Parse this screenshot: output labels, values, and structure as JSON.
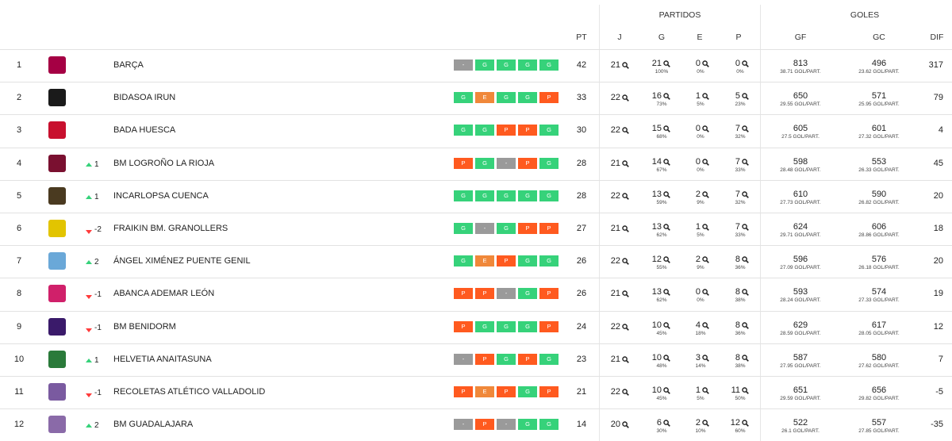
{
  "header": {
    "groups": [
      "PARTIDOS",
      "GOLES"
    ],
    "columns": [
      "PT",
      "J",
      "G",
      "E",
      "P",
      "GF",
      "GC",
      "DIF"
    ]
  },
  "table": {
    "rows": [
      {
        "position": 1,
        "team": "BARÇA",
        "form": [
          "-",
          "G",
          "G",
          "G",
          "G"
        ],
        "pt": 42,
        "j": 21,
        "g": 21,
        "g_pct": "100%",
        "e": 0,
        "e_pct": "0%",
        "p": 0,
        "p_pct": "0%",
        "gf": 813,
        "gf_avg": "38.71 GOL/PART.",
        "gc": 496,
        "gc_avg": "23.62 GOL/PART.",
        "dif": 317
      },
      {
        "position": 2,
        "team": "BIDASOA IRUN",
        "form": [
          "G",
          "E",
          "G",
          "G",
          "P"
        ],
        "pt": 33,
        "j": 22,
        "g": 16,
        "g_pct": "73%",
        "e": 1,
        "e_pct": "5%",
        "p": 5,
        "p_pct": "23%",
        "gf": 650,
        "gf_avg": "29.55 GOL/PART.",
        "gc": 571,
        "gc_avg": "25.95 GOL/PART.",
        "dif": 79
      },
      {
        "position": 3,
        "team": "BADA HUESCA",
        "form": [
          "G",
          "G",
          "P",
          "P",
          "G"
        ],
        "pt": 30,
        "j": 22,
        "g": 15,
        "g_pct": "68%",
        "e": 0,
        "e_pct": "0%",
        "p": 7,
        "p_pct": "32%",
        "gf": 605,
        "gf_avg": "27.5 GOL/PART.",
        "gc": 601,
        "gc_avg": "27.32 GOL/PART.",
        "dif": 4
      },
      {
        "position": 4,
        "team": "BM LOGROÑO LA RIOJA",
        "change": 1,
        "form": [
          "P",
          "G",
          "-",
          "P",
          "G"
        ],
        "pt": 28,
        "j": 21,
        "g": 14,
        "g_pct": "67%",
        "e": 0,
        "e_pct": "0%",
        "p": 7,
        "p_pct": "33%",
        "gf": 598,
        "gf_avg": "28.48 GOL/PART.",
        "gc": 553,
        "gc_avg": "26.33 GOL/PART.",
        "dif": 45
      },
      {
        "position": 5,
        "team": "INCARLOPSA CUENCA",
        "change": 1,
        "form": [
          "G",
          "G",
          "G",
          "G",
          "G"
        ],
        "pt": 28,
        "j": 22,
        "g": 13,
        "g_pct": "59%",
        "e": 2,
        "e_pct": "9%",
        "p": 7,
        "p_pct": "32%",
        "gf": 610,
        "gf_avg": "27.73 GOL/PART.",
        "gc": 590,
        "gc_avg": "26.82 GOL/PART.",
        "dif": 20
      },
      {
        "position": 6,
        "team": "FRAIKIN BM. GRANOLLERS",
        "change": -2,
        "form": [
          "G",
          "-",
          "G",
          "P",
          "P"
        ],
        "pt": 27,
        "j": 21,
        "g": 13,
        "g_pct": "62%",
        "e": 1,
        "e_pct": "5%",
        "p": 7,
        "p_pct": "33%",
        "gf": 624,
        "gf_avg": "29.71 GOL/PART.",
        "gc": 606,
        "gc_avg": "28.86 GOL/PART.",
        "dif": 18
      },
      {
        "position": 7,
        "team": "ÁNGEL XIMÉNEZ PUENTE GENIL",
        "change": 2,
        "form": [
          "G",
          "E",
          "P",
          "G",
          "G"
        ],
        "pt": 26,
        "j": 22,
        "g": 12,
        "g_pct": "55%",
        "e": 2,
        "e_pct": "9%",
        "p": 8,
        "p_pct": "36%",
        "gf": 596,
        "gf_avg": "27.09 GOL/PART.",
        "gc": 576,
        "gc_avg": "26.18 GOL/PART.",
        "dif": 20
      },
      {
        "position": 8,
        "team": "ABANCA ADEMAR LEÓN",
        "change": -1,
        "form": [
          "P",
          "P",
          "-",
          "G",
          "P"
        ],
        "pt": 26,
        "j": 21,
        "g": 13,
        "g_pct": "62%",
        "e": 0,
        "e_pct": "0%",
        "p": 8,
        "p_pct": "38%",
        "gf": 593,
        "gf_avg": "28.24 GOL/PART.",
        "gc": 574,
        "gc_avg": "27.33 GOL/PART.",
        "dif": 19
      },
      {
        "position": 9,
        "team": "BM BENIDORM",
        "change": -1,
        "form": [
          "P",
          "G",
          "G",
          "G",
          "P"
        ],
        "pt": 24,
        "j": 22,
        "g": 10,
        "g_pct": "45%",
        "e": 4,
        "e_pct": "18%",
        "p": 8,
        "p_pct": "36%",
        "gf": 629,
        "gf_avg": "28.59 GOL/PART.",
        "gc": 617,
        "gc_avg": "28.05 GOL/PART.",
        "dif": 12
      },
      {
        "position": 10,
        "team": "HELVETIA ANAITASUNA",
        "change": 1,
        "form": [
          "-",
          "P",
          "G",
          "P",
          "G"
        ],
        "pt": 23,
        "j": 21,
        "g": 10,
        "g_pct": "48%",
        "e": 3,
        "e_pct": "14%",
        "p": 8,
        "p_pct": "38%",
        "gf": 587,
        "gf_avg": "27.95 GOL/PART.",
        "gc": 580,
        "gc_avg": "27.62 GOL/PART.",
        "dif": 7
      },
      {
        "position": 11,
        "team": "RECOLETAS ATLÉTICO VALLADOLID",
        "change": -1,
        "form": [
          "P",
          "E",
          "P",
          "G",
          "P"
        ],
        "pt": 21,
        "j": 22,
        "g": 10,
        "g_pct": "45%",
        "e": 1,
        "e_pct": "5%",
        "p": 11,
        "p_pct": "50%",
        "gf": 651,
        "gf_avg": "29.59 GOL/PART.",
        "gc": 656,
        "gc_avg": "29.82 GOL/PART.",
        "dif": -5
      },
      {
        "position": 12,
        "team": "BM GUADALAJARA",
        "change": 2,
        "form": [
          "-",
          "P",
          "-",
          "G",
          "G"
        ],
        "pt": 14,
        "j": 20,
        "g": 6,
        "g_pct": "30%",
        "e": 2,
        "e_pct": "10%",
        "p": 12,
        "p_pct": "60%",
        "gf": 522,
        "gf_avg": "26.1 GOL/PART.",
        "gc": 557,
        "gc_avg": "27.85 GOL/PART.",
        "dif": -35
      }
    ]
  }
}
